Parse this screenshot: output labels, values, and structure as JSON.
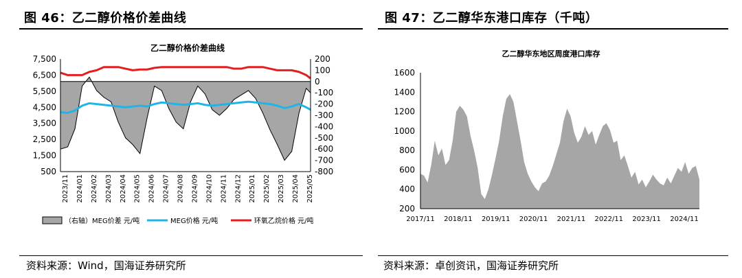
{
  "left": {
    "figure_title": "图 46：乙二醇价格价差曲线",
    "source": "资料来源：Wind，国海证券研究所"
  },
  "right": {
    "figure_title": "图 47：乙二醇华东港口库存（千吨）",
    "source": "资料来源：卓创资讯，国海证券研究所"
  },
  "colors": {
    "spread_fill": "#a6a6a6",
    "meg_price": "#1fb4e6",
    "eo_price": "#e41e1e",
    "inventory_fill": "#a6a6a6",
    "axis": "#000000"
  },
  "chart_data": [
    {
      "type": "line",
      "title": "乙二醇价格价差曲线",
      "left_ylim": [
        500,
        7500
      ],
      "left_yticks": [
        "7,500",
        "6,500",
        "5,500",
        "4,500",
        "3,500",
        "2,500",
        "1,500",
        "500"
      ],
      "right_ylim": [
        -800,
        200
      ],
      "right_yticks": [
        "200",
        "100",
        "0",
        "-100",
        "-200",
        "-300",
        "-400",
        "-500",
        "-600",
        "-700",
        "-800"
      ],
      "x_ticks": [
        "2023/11",
        "2024/01",
        "2024/02",
        "2024/03",
        "2024/04",
        "2024/05",
        "2024/06",
        "2024/07",
        "2024/08",
        "2024/09",
        "2024/10",
        "2024/11",
        "2024/12",
        "2025/01",
        "2025/02",
        "2025/03",
        "2025/04",
        "2025/05"
      ],
      "legend": [
        "（右轴）MEG价差 元/吨",
        "MEG价格 元/吨",
        "环氧乙烷价格 元/吨"
      ],
      "x": [
        0,
        0.5,
        1,
        1.5,
        2,
        2.5,
        3,
        3.5,
        4,
        4.5,
        5,
        5.5,
        6,
        6.5,
        7,
        7.5,
        8,
        8.5,
        9,
        9.5,
        10,
        10.5,
        11,
        11.5,
        12,
        12.5,
        13,
        13.5,
        14,
        14.5,
        15,
        15.5,
        16,
        16.5,
        17,
        17.3
      ],
      "series": [
        {
          "name": "（右轴）MEG价差 元/吨",
          "axis": "right",
          "type": "area",
          "values": [
            -600,
            -580,
            -420,
            -40,
            40,
            -80,
            -140,
            -180,
            -360,
            -500,
            -560,
            -640,
            -320,
            -40,
            -80,
            -240,
            -360,
            -420,
            -180,
            -40,
            -110,
            -250,
            -300,
            -240,
            -160,
            -120,
            -80,
            -150,
            -280,
            -430,
            -560,
            -700,
            -620,
            -280,
            -60,
            -100
          ]
        },
        {
          "name": "MEG价格 元/吨",
          "axis": "left",
          "type": "line",
          "values": [
            4200,
            4150,
            4300,
            4600,
            4750,
            4700,
            4650,
            4600,
            4550,
            4500,
            4550,
            4600,
            4550,
            4700,
            4800,
            4750,
            4700,
            4650,
            4700,
            4750,
            4650,
            4600,
            4650,
            4700,
            4750,
            4800,
            4850,
            4800,
            4750,
            4700,
            4600,
            4450,
            4550,
            4700,
            4500,
            4350
          ]
        },
        {
          "name": "环氧乙烷价格 元/吨",
          "axis": "left",
          "type": "line",
          "values": [
            6650,
            6500,
            6500,
            6500,
            6700,
            6800,
            7000,
            7000,
            7000,
            6900,
            6800,
            6850,
            6850,
            6950,
            7000,
            7000,
            7000,
            7000,
            7000,
            7000,
            7000,
            7000,
            7000,
            7000,
            6900,
            6900,
            7000,
            7000,
            7000,
            6900,
            6800,
            6800,
            6800,
            6700,
            6500,
            6300
          ]
        }
      ]
    },
    {
      "type": "area",
      "title": "乙二醇华东地区周度港口库存",
      "ylim": [
        200,
        1600
      ],
      "yticks": [
        "1600",
        "1400",
        "1200",
        "1000",
        "800",
        "600",
        "400",
        "200"
      ],
      "x_ticks": [
        "2017/11",
        "2018/11",
        "2019/11",
        "2020/11",
        "2021/11",
        "2022/11",
        "2023/11",
        "2024/11"
      ],
      "x": [
        0,
        0.1,
        0.2,
        0.3,
        0.4,
        0.5,
        0.6,
        0.7,
        0.8,
        0.9,
        1.0,
        1.1,
        1.2,
        1.3,
        1.4,
        1.5,
        1.6,
        1.7,
        1.8,
        1.9,
        2.0,
        2.1,
        2.2,
        2.3,
        2.4,
        2.5,
        2.6,
        2.7,
        2.8,
        2.9,
        3.0,
        3.1,
        3.2,
        3.3,
        3.4,
        3.5,
        3.6,
        3.7,
        3.8,
        3.9,
        4.0,
        4.1,
        4.2,
        4.3,
        4.4,
        4.5,
        4.6,
        4.7,
        4.8,
        4.9,
        5.0,
        5.1,
        5.2,
        5.3,
        5.4,
        5.5,
        5.6,
        5.7,
        5.8,
        5.9,
        6.0,
        6.1,
        6.2,
        6.3,
        6.4,
        6.5,
        6.6,
        6.7,
        6.8,
        6.9,
        7.0,
        7.1,
        7.2,
        7.3,
        7.4,
        7.5,
        7.6,
        7.7,
        7.8
      ],
      "series": [
        {
          "name": "库存",
          "values": [
            560,
            540,
            470,
            650,
            900,
            750,
            820,
            650,
            700,
            900,
            1200,
            1260,
            1220,
            1150,
            950,
            800,
            620,
            350,
            300,
            400,
            550,
            720,
            900,
            1150,
            1330,
            1380,
            1300,
            1100,
            900,
            680,
            560,
            480,
            420,
            380,
            460,
            480,
            540,
            640,
            760,
            880,
            1100,
            1230,
            1150,
            980,
            880,
            940,
            1050,
            960,
            1000,
            860,
            960,
            1050,
            1080,
            1010,
            880,
            900,
            700,
            750,
            640,
            520,
            580,
            450,
            500,
            420,
            480,
            550,
            500,
            460,
            440,
            520,
            460,
            540,
            620,
            580,
            680,
            560,
            620,
            640,
            500
          ]
        }
      ]
    }
  ]
}
